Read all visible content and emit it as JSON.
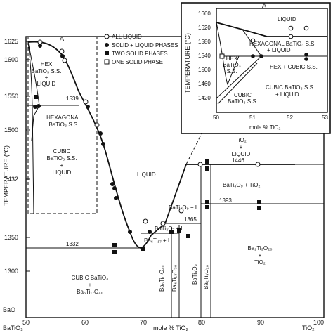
{
  "y_axis_title": "TEMPERATURE (°C)",
  "x_axis_title": "mole % TiO₂",
  "x_left_label": "BaO",
  "x_left_label2": "BaTiO₃",
  "x_right_label": "TiO₂",
  "y_ticks": [
    "1625",
    "1600",
    "1550",
    "1500",
    "1432",
    "1350",
    "1300"
  ],
  "x_ticks": [
    "50",
    "60",
    "70",
    "80",
    "90",
    "100"
  ],
  "marker_a": "A",
  "legend": [
    {
      "symbol": "open-circle",
      "label": "ALL LIQUID"
    },
    {
      "symbol": "filled-circle",
      "label": "SOLID + LIQUID PHASES"
    },
    {
      "symbol": "filled-square",
      "label": "TWO SOLID PHASES"
    },
    {
      "symbol": "open-square",
      "label": "ONE SOLID PHASE"
    }
  ],
  "regions": {
    "hex_liquid": [
      "HEX",
      "BaTiO₃ S.S.",
      "+",
      "LIQUID"
    ],
    "hexagonal": [
      "HEXAGONAL",
      "BaTiO₃ S.S."
    ],
    "cubic_liquid": [
      "CUBIC",
      "BaTiO₃ S.S.",
      "+",
      "LIQUID"
    ],
    "liquid": "LIQUID",
    "tio2_liquid": [
      "TiO₂",
      "+",
      "LIQUID"
    ],
    "ba4_liquid": "BaTi₄O₉ + L",
    "ba4_tio2": "BaTi₄O₉ + TiO₂",
    "ba3_l": "BaTi₃O₇ + L",
    "ba6_l": "Ba₆Ti₁₇ + L",
    "ba2_tio2": [
      "Ba₂Ti₉O₂₀",
      "+",
      "TiO₂"
    ],
    "cubic_bottom": [
      "CUBIC BaTiO₃",
      "+",
      "Ba₆Ti₁₇O₄₀"
    ],
    "v1": "Ba₆Ti₁₇O₄₀",
    "v2": "Ba₄Ti₁₃O₃₀",
    "v3": "BaTi₄O₉",
    "v4": "Ba₂Ti₉O₂₀"
  },
  "isotherms": {
    "t1539": "1539",
    "t1332": "1332",
    "t1446": "1446",
    "t1393": "1393",
    "t1365": "1365",
    "t1357": "1357"
  },
  "inset": {
    "marker": "A",
    "y_title": "TEMPERATURE (°C)",
    "x_title": "mole % TiO₂",
    "y_ticks": [
      "1660",
      "1620",
      "1580",
      "1540",
      "1500",
      "1460",
      "1420"
    ],
    "x_ticks": [
      "50",
      "51",
      "52",
      "53"
    ],
    "liquid": "LIQUID",
    "hex_liquid": [
      "HEXAGONAL BaTiO₃ S.S.",
      "+ LIQUID"
    ],
    "hex_ss": [
      "HEX",
      "BaTiO₃",
      "S.S."
    ],
    "hex_cubic": "HEX + CUBIC S.S.",
    "cubic_liquid": [
      "CUBIC BaTiO₃ S.S.",
      "+ LIQUID"
    ],
    "cubic_ss": [
      "CUBIC",
      "BaTiO₃ S.S."
    ]
  }
}
